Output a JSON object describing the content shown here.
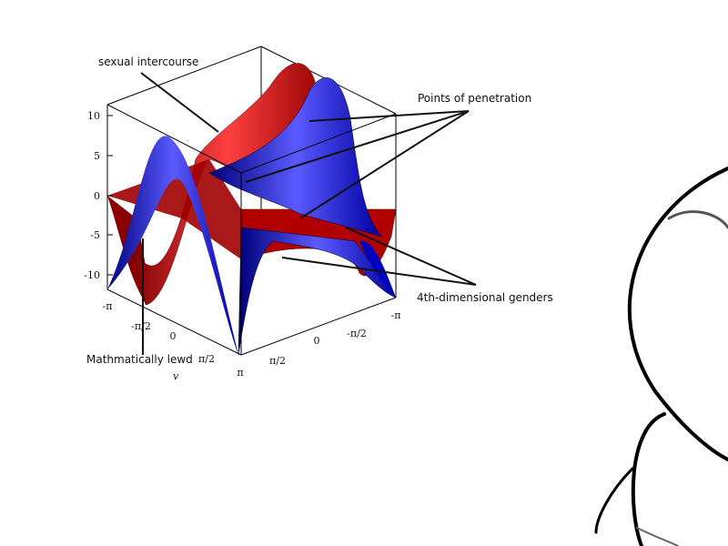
{
  "annotations": {
    "top": "sexual intercourse",
    "right_top": "Points of penetration",
    "right_bottom": "4th-dimensional genders",
    "bottom": "Mathmatically lewd"
  },
  "chart_data": {
    "type": "surface",
    "title": "",
    "series_colors": [
      "#e02020",
      "#2020e0"
    ],
    "z_ticks": [
      "10",
      "5",
      "0",
      "-5",
      "-10"
    ],
    "zlim": [
      -12,
      12
    ],
    "v_axis": {
      "label": "v",
      "ticks": [
        "-π",
        "-π/2",
        "0",
        "π/2",
        "π"
      ]
    },
    "u_axis": {
      "label": "",
      "ticks": [
        "π",
        "π/2",
        "0",
        "-π/2",
        "-π"
      ]
    },
    "box": true
  }
}
